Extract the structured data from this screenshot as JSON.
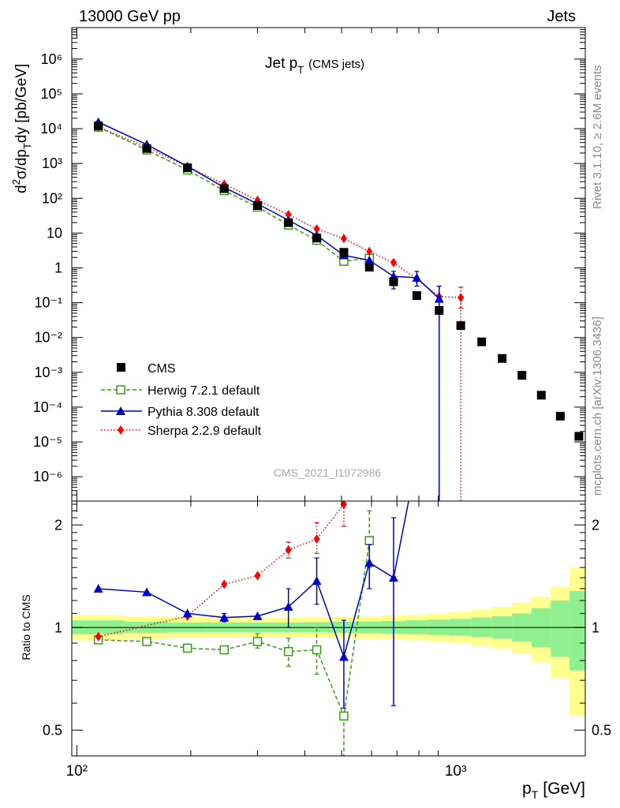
{
  "header": {
    "left": "13000 GeV pp",
    "right": "Jets"
  },
  "plot_title": {
    "main": "Jet p",
    "sub": "T",
    "qualifier": "(CMS jets)"
  },
  "side_labels": {
    "rivet": "Rivet 3.1.10, ≥ 2.6M events",
    "mcplots": "mcplots.cern.ch [arXiv:1306.3436]"
  },
  "analysis_id": "CMS_2021_I1972986",
  "legend": {
    "entries": [
      "CMS",
      "Herwig 7.2.1 default",
      "Pythia 8.308 default",
      "Sherpa 2.2.9 default"
    ]
  },
  "colors": {
    "cms": "#000000",
    "herwig": "#3a9a1a",
    "pythia": "#0000cc",
    "sherpa": "#ff0000",
    "band_inner": "#90f090",
    "band_outer": "#ffff90"
  },
  "chart_data": [
    {
      "type": "scatter",
      "panel": "main",
      "xlabel_parts": [
        "p",
        "T",
        "[GeV]"
      ],
      "ylabel": "d²σ/dp_T dy [pb/GeV]",
      "xscale": "log",
      "yscale": "log",
      "xlim": [
        97,
        2200
      ],
      "ylim": [
        2e-07,
        8000000.0
      ],
      "x_tick_labels": [
        "10²",
        "10³"
      ],
      "y_tick_labels": [
        "10⁶",
        "10⁵",
        "10⁴",
        "10³",
        "10²",
        "10",
        "1",
        "10⁻¹",
        "10⁻²",
        "10⁻³",
        "10⁻⁴",
        "10⁻⁵",
        "10⁻⁶"
      ],
      "series": [
        {
          "name": "CMS",
          "x": [
            114,
            153,
            196,
            245,
            300,
            362,
            430,
            507,
            592,
            686,
            790,
            905,
            1032,
            1172,
            1327,
            1497,
            1684,
            1890,
            2116
          ],
          "y": [
            12000,
            2700,
            750,
            190,
            62,
            20,
            7.2,
            2.8,
            1.05,
            0.4,
            0.16,
            0.06,
            0.022,
            0.0075,
            0.0025,
            0.00082,
            0.00022,
            5.5e-05,
            1.45e-05
          ]
        },
        {
          "name": "Herwig 7.2.1 default",
          "x": [
            114,
            153,
            196,
            245,
            300,
            362,
            430,
            507,
            592
          ],
          "y": [
            11000,
            2450,
            650,
            165,
            56,
            17,
            6.2,
            1.55,
            1.9
          ]
        },
        {
          "name": "Pythia 8.308 default",
          "x": [
            114,
            153,
            196,
            245,
            300,
            362,
            430,
            507,
            592,
            686,
            790,
            905
          ],
          "y": [
            15500,
            3500,
            830,
            205,
            69,
            23.5,
            8.6,
            2.3,
            1.65,
            0.57,
            0.52,
            0.13
          ]
        },
        {
          "name": "Sherpa 2.2.9 default",
          "x": [
            114,
            153,
            196,
            245,
            300,
            362,
            430,
            507,
            592,
            686,
            790,
            905,
            1032
          ],
          "y": [
            11300,
            2950,
            810,
            255,
            88,
            34,
            13.2,
            7.0,
            2.95,
            1.42,
            0.48,
            0.15,
            0.14
          ]
        }
      ]
    },
    {
      "type": "line",
      "panel": "ratio",
      "ylabel": "Ratio to CMS",
      "xscale": "log",
      "yscale": "log",
      "xlim": [
        97,
        2200
      ],
      "ylim": [
        0.42,
        2.35
      ],
      "y_tick_labels": [
        "2",
        "1",
        "0.5"
      ],
      "series": [
        {
          "name": "Herwig 7.2.1 default",
          "x": [
            114,
            153,
            196,
            245,
            300,
            362,
            430,
            507,
            592
          ],
          "y": [
            0.92,
            0.91,
            0.87,
            0.86,
            0.91,
            0.85,
            0.86,
            0.55,
            1.8
          ]
        },
        {
          "name": "Pythia 8.308 default",
          "x": [
            114,
            153,
            196,
            245,
            300,
            362,
            430,
            507,
            592,
            686
          ],
          "y": [
            1.3,
            1.27,
            1.1,
            1.07,
            1.08,
            1.15,
            1.37,
            0.82,
            1.55,
            1.4
          ]
        },
        {
          "name": "Sherpa 2.2.9 default",
          "x": [
            114,
            196,
            245,
            300,
            362,
            430,
            507
          ],
          "y": [
            0.94,
            1.08,
            1.34,
            1.42,
            1.69,
            1.82,
            2.3
          ]
        }
      ]
    }
  ]
}
